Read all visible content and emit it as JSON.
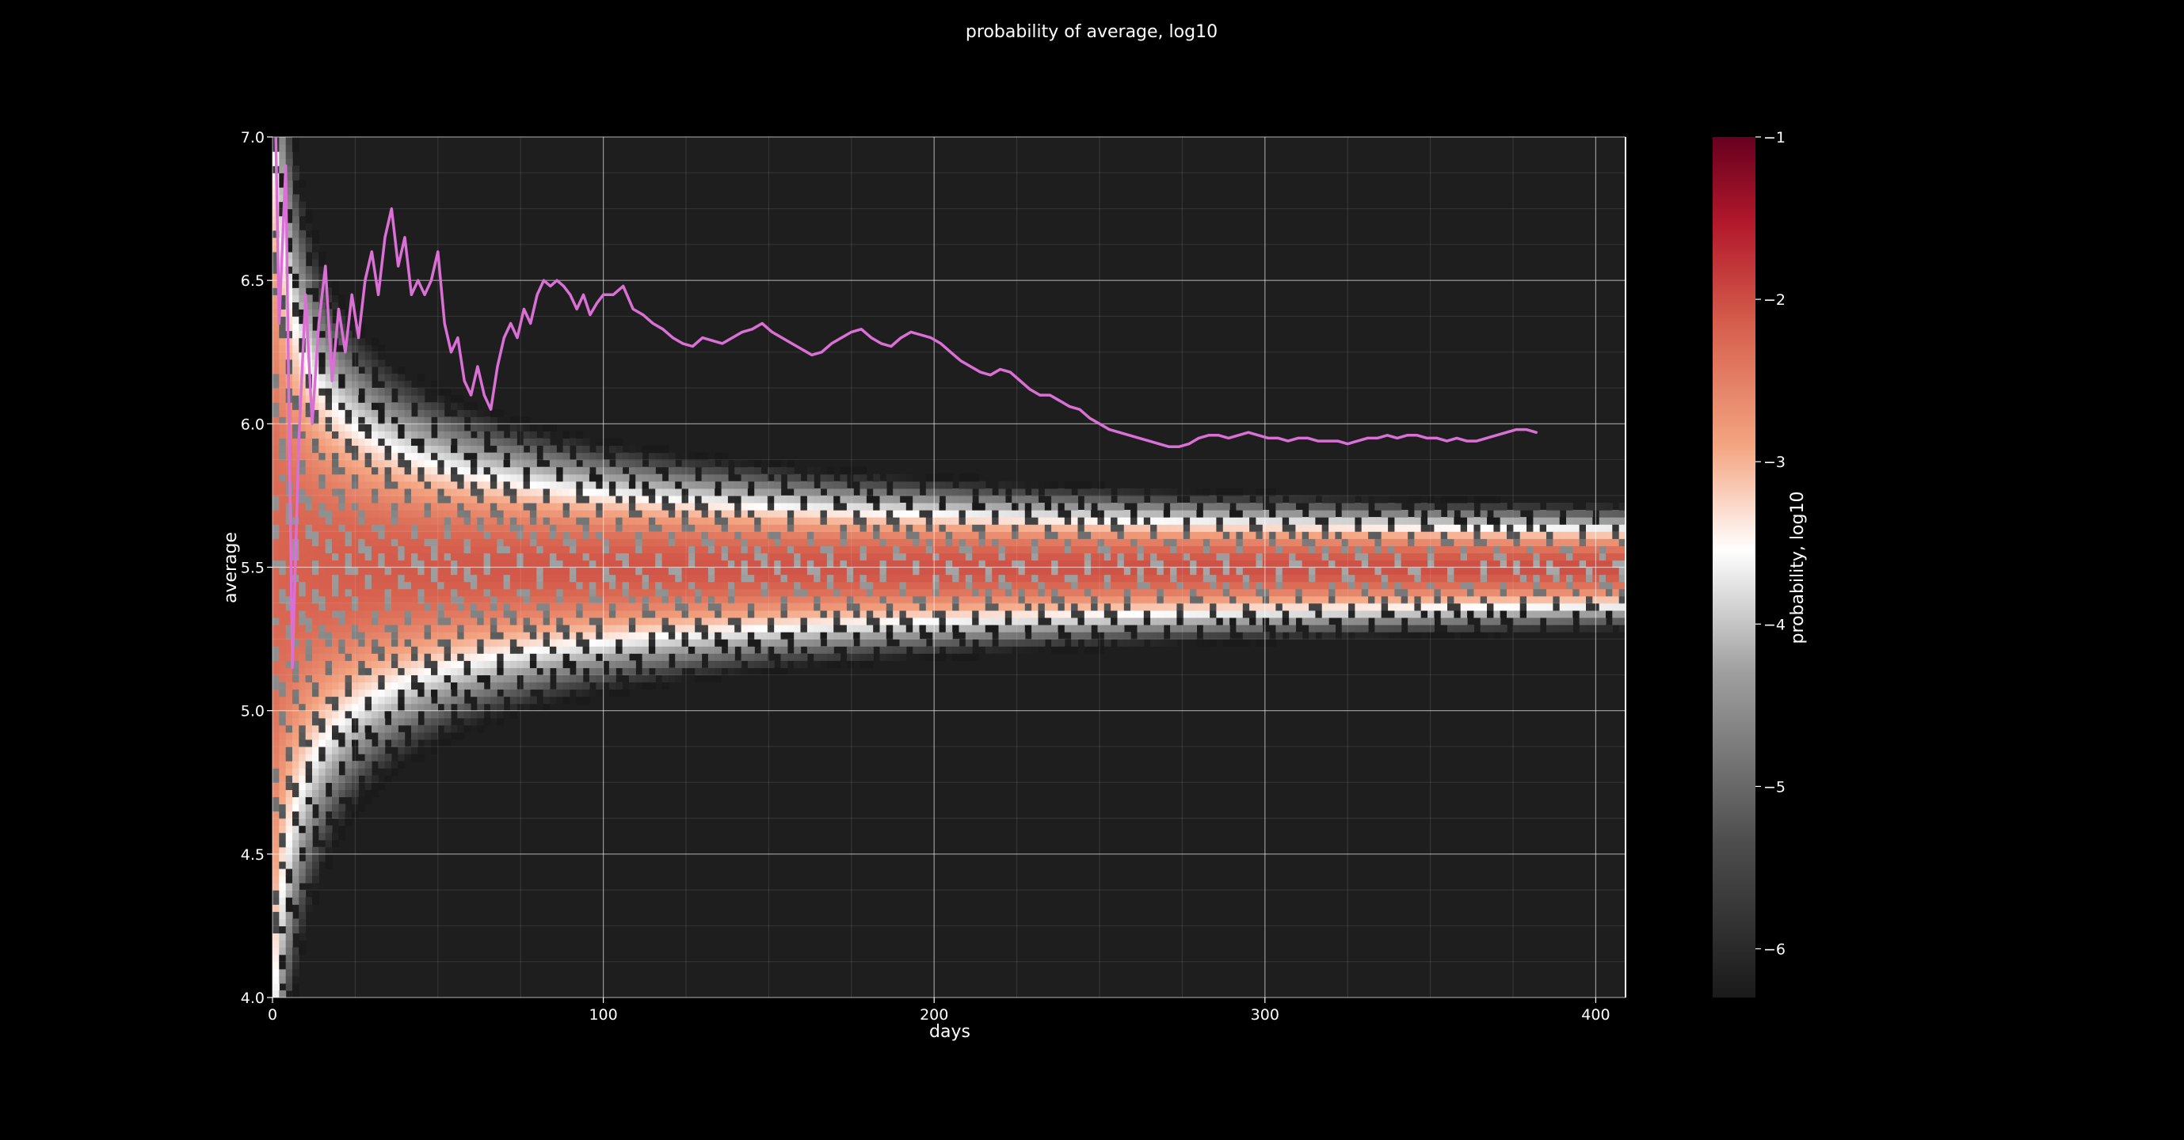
{
  "chart_data": {
    "type": "heatmap",
    "title": "probability of average, log10",
    "xlabel": "days",
    "ylabel": "average",
    "xlim": [
      0,
      409
    ],
    "ylim": [
      4.0,
      7.0
    ],
    "x_ticks": [
      0,
      100,
      200,
      300,
      400
    ],
    "y_ticks": [
      4.0,
      4.5,
      5.0,
      5.5,
      6.0,
      6.5,
      7.0
    ],
    "x_tick_labels": [
      "0",
      "100",
      "200",
      "300",
      "400"
    ],
    "y_tick_labels": [
      "4.0",
      "4.5",
      "5.0",
      "5.5",
      "6.0",
      "6.5",
      "7.0"
    ],
    "grid": true,
    "background_color": "#000000",
    "plot_background_color": "#1e1e1e",
    "colorbar": {
      "label": "probability, log10",
      "range": [
        -6.3,
        -1
      ],
      "ticks": [
        -1,
        -2,
        -3,
        -4,
        -5,
        -6
      ],
      "tick_labels": [
        "−1",
        "−2",
        "−3",
        "−4",
        "−5",
        "−6"
      ],
      "colormap": "RdGy_r"
    },
    "heatmap_description": {
      "center": 5.5,
      "spread_model": "std ≈ 1.0 / sqrt(days + 2)",
      "peak_log10": -2.2
    },
    "series": [
      {
        "color": "#da70d6",
        "x": [
          1,
          2,
          4,
          6,
          8,
          10,
          12,
          14,
          16,
          18,
          20,
          22,
          24,
          26,
          28,
          30,
          32,
          34,
          36,
          38,
          40,
          42,
          44,
          46,
          48,
          50,
          52,
          54,
          56,
          58,
          60,
          62,
          64,
          66,
          68,
          70,
          72,
          74,
          76,
          78,
          80,
          82,
          84,
          86,
          88,
          90,
          92,
          94,
          96,
          98,
          100,
          103,
          106,
          109,
          112,
          115,
          118,
          121,
          124,
          127,
          130,
          133,
          136,
          139,
          142,
          145,
          148,
          151,
          154,
          157,
          160,
          163,
          166,
          169,
          172,
          175,
          178,
          181,
          184,
          187,
          190,
          193,
          196,
          199,
          202,
          205,
          208,
          211,
          214,
          217,
          220,
          223,
          226,
          229,
          232,
          235,
          238,
          241,
          244,
          247,
          250,
          253,
          256,
          259,
          262,
          265,
          268,
          271,
          274,
          277,
          280,
          283,
          286,
          289,
          292,
          295,
          298,
          301,
          304,
          307,
          310,
          313,
          316,
          319,
          322,
          325,
          328,
          331,
          334,
          337,
          340,
          343,
          346,
          349,
          352,
          355,
          358,
          361,
          364,
          367,
          370,
          373,
          376,
          379,
          382
        ],
        "y": [
          7.0,
          6.35,
          6.9,
          5.15,
          5.95,
          6.45,
          6.0,
          6.35,
          6.55,
          6.15,
          6.4,
          6.25,
          6.45,
          6.3,
          6.5,
          6.6,
          6.45,
          6.65,
          6.75,
          6.55,
          6.65,
          6.45,
          6.5,
          6.45,
          6.5,
          6.6,
          6.35,
          6.25,
          6.3,
          6.15,
          6.1,
          6.2,
          6.1,
          6.05,
          6.2,
          6.3,
          6.35,
          6.3,
          6.4,
          6.35,
          6.45,
          6.5,
          6.48,
          6.5,
          6.48,
          6.45,
          6.4,
          6.45,
          6.38,
          6.42,
          6.45,
          6.45,
          6.48,
          6.4,
          6.38,
          6.35,
          6.33,
          6.3,
          6.28,
          6.27,
          6.3,
          6.29,
          6.28,
          6.3,
          6.32,
          6.33,
          6.35,
          6.32,
          6.3,
          6.28,
          6.26,
          6.24,
          6.25,
          6.28,
          6.3,
          6.32,
          6.33,
          6.3,
          6.28,
          6.27,
          6.3,
          6.32,
          6.31,
          6.3,
          6.28,
          6.25,
          6.22,
          6.2,
          6.18,
          6.17,
          6.19,
          6.18,
          6.15,
          6.12,
          6.1,
          6.1,
          6.08,
          6.06,
          6.05,
          6.02,
          6.0,
          5.98,
          5.97,
          5.96,
          5.95,
          5.94,
          5.93,
          5.92,
          5.92,
          5.93,
          5.95,
          5.96,
          5.96,
          5.95,
          5.96,
          5.97,
          5.96,
          5.95,
          5.95,
          5.94,
          5.95,
          5.95,
          5.94,
          5.94,
          5.94,
          5.93,
          5.94,
          5.95,
          5.95,
          5.96,
          5.95,
          5.96,
          5.96,
          5.95,
          5.95,
          5.94,
          5.95,
          5.94,
          5.94,
          5.95,
          5.96,
          5.97,
          5.98,
          5.98,
          5.97
        ]
      }
    ]
  }
}
